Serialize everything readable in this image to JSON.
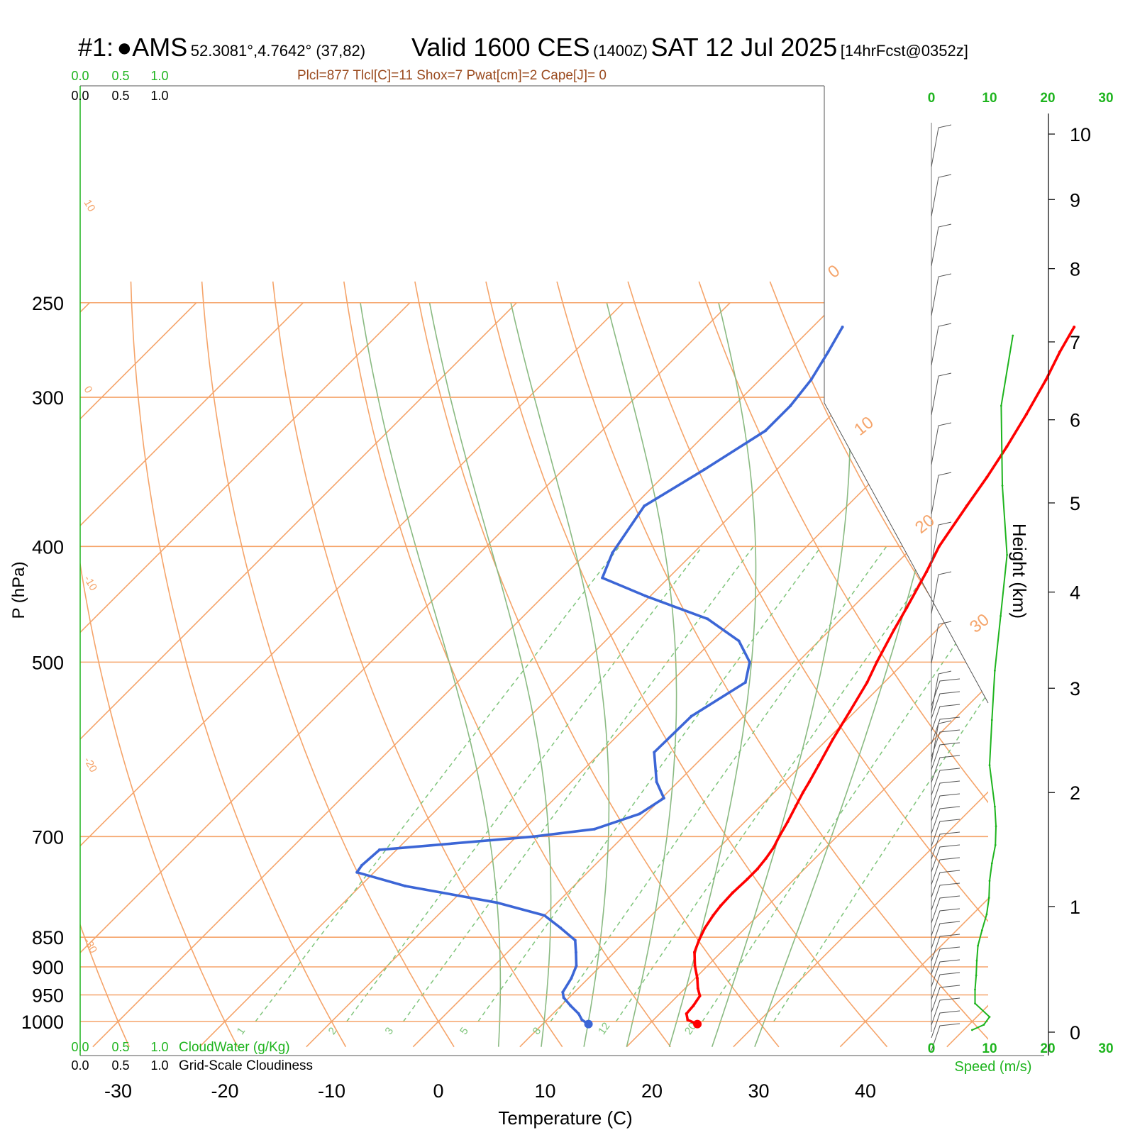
{
  "header": {
    "station_id": "#1:",
    "station_dot": "●",
    "station_name": "AMS",
    "coords": "52.3081°,4.7642° (37,82)",
    "valid": "Valid 1600 CES",
    "zulu": "(1400Z)",
    "date": "SAT 12 Jul 2025",
    "forecast": "[14hrFcst@0352z]",
    "indices": "Plcl=877 Tlcl[C]=11 Shox=7 Pwat[cm]=2 Cape[J]= 0"
  },
  "legend_scales": {
    "cloudwater_ticks": [
      "0.0",
      "0.5",
      "1.0"
    ],
    "cloudiness_ticks": [
      "0.0",
      "0.5",
      "1.0"
    ],
    "cloudwater_label": "CloudWater (g/Kg)",
    "cloudiness_label": "Grid-Scale Cloudiness"
  },
  "colors": {
    "isotherm": "#f5a46a",
    "dry_adiabat": "#f5a46a",
    "moist_adiabat": "#8aba82",
    "mixing_ratio": "#7ec47a",
    "temperature": "#ff0000",
    "dewpoint": "#3c66d6",
    "wind_speed": "#1eb41e",
    "indices_text": "#9a4a1e",
    "green_text": "#1eb41e"
  },
  "chart_data": {
    "type": "skew-t log-p sounding",
    "xlabel": "Temperature (C)",
    "ylabel": "P (hPa)",
    "y2label": "Height (km)",
    "x_ticks": [
      -30,
      -20,
      -10,
      0,
      10,
      20,
      30,
      40
    ],
    "x_tick_labels": [
      "-30",
      "-20",
      "-10",
      "0",
      "10",
      "20",
      "30",
      "40"
    ],
    "pressure_levels": [
      250,
      300,
      400,
      500,
      700,
      850,
      900,
      950,
      1000
    ],
    "pressure_labels": [
      "250",
      "300",
      "400",
      "500",
      "700",
      "850",
      "900",
      "950",
      "1000"
    ],
    "pressure_range": [
      250,
      1050
    ],
    "height_ticks_km": [
      0,
      1,
      2,
      3,
      4,
      5,
      6,
      7,
      8,
      9,
      10
    ],
    "height_tick_labels": [
      "0",
      "1",
      "2",
      "3",
      "4",
      "5",
      "6",
      "7",
      "8",
      "9",
      "10"
    ],
    "dry_adiabat_labels": [
      "10",
      "0",
      "-10",
      "-20",
      "-30",
      "0",
      "10",
      "20",
      "30"
    ],
    "mixing_ratio_labels": [
      "1",
      "2",
      "3",
      "5",
      "8",
      "12",
      "20"
    ],
    "temperature": {
      "name": "Temperature",
      "p": [
        1005,
        997,
        985,
        970,
        952,
        938,
        920,
        898,
        875,
        855,
        835,
        815,
        800,
        780,
        760,
        745,
        730,
        715,
        700,
        680,
        660,
        643,
        630,
        610,
        580,
        550,
        520,
        500,
        470,
        450,
        420,
        400,
        370,
        350,
        330,
        310,
        290,
        275,
        262
      ],
      "t": [
        24.5,
        23.2,
        22.5,
        22.4,
        22.1,
        21.2,
        20.2,
        18.8,
        17.5,
        16.8,
        16.2,
        15.8,
        15.6,
        15.5,
        15.6,
        15.6,
        15.4,
        15.1,
        14.6,
        14.0,
        13.3,
        12.7,
        12.3,
        11.6,
        10.5,
        9.5,
        8.4,
        7.4,
        6.0,
        5.1,
        3.6,
        2.4,
        1.2,
        0.4,
        -0.6,
        -1.8,
        -3.2,
        -4.5,
        -5.5
      ]
    },
    "dewpoint": {
      "name": "Dewpoint",
      "p": [
        1005,
        997,
        985,
        970,
        955,
        945,
        920,
        898,
        875,
        855,
        835,
        815,
        795,
        770,
        750,
        740,
        718,
        700,
        690,
        670,
        650,
        630,
        595,
        555,
        520,
        500,
        480,
        460,
        440,
        425,
        405,
        370,
        345,
        320,
        305,
        290,
        275,
        262
      ],
      "td": [
        14.3,
        13.3,
        12.4,
        10.9,
        9.5,
        8.9,
        8.4,
        7.7,
        6.4,
        5.2,
        2.7,
        0.0,
        -5.7,
        -15.8,
        -21.6,
        -21.8,
        -21.6,
        -8.4,
        -3.4,
        -0.6,
        0.2,
        -2.0,
        -5.0,
        -4.9,
        -3.0,
        -4.5,
        -7.5,
        -12.5,
        -20.5,
        -26.2,
        -27.6,
        -29.0,
        -26.8,
        -24.7,
        -24.7,
        -25.2,
        -26.2,
        -27.2
      ]
    },
    "wind_speed": {
      "name": "Speed (m/s)",
      "ticks": [
        0,
        10,
        20,
        30
      ],
      "tick_labels": [
        "0",
        "10",
        "20",
        "30"
      ],
      "p": [
        1000,
        990,
        975,
        950,
        925,
        900,
        875,
        850,
        825,
        800,
        775,
        750,
        725,
        700,
        675,
        650,
        600,
        550,
        500,
        450,
        400,
        350,
        300,
        262
      ],
      "speed": [
        7,
        9,
        10,
        7.5,
        7.5,
        7.7,
        7.8,
        8.0,
        8.7,
        9.5,
        9.9,
        10.0,
        10.4,
        11.0,
        11.1,
        10.9,
        10.0,
        10.4,
        10.9,
        11.9,
        13.0,
        12.2,
        12.0,
        14.0
      ]
    },
    "indices": {
      "Plcl": 877,
      "Tlcl_C": 11,
      "Shox": 7,
      "Pwat_cm": 2,
      "Cape_J": 0
    }
  }
}
